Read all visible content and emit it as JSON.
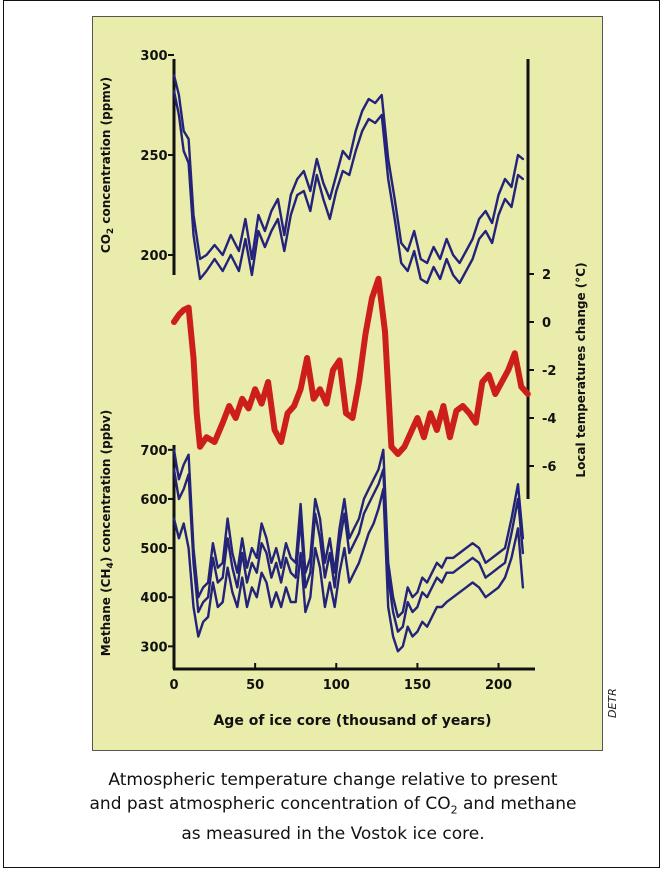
{
  "credit": "DETR",
  "caption": {
    "line1": "Atmospheric temperature change relative to present",
    "line2_pre": "and past atmospheric concentration of CO",
    "line2_sub": "2",
    "line2_post": " and methane",
    "line3": "as measured in the Vostok ice core."
  },
  "colors": {
    "panel": "#e9ecaa",
    "series_blue": "#23237a",
    "series_red": "#cc1f1a",
    "axis": "#111111"
  },
  "chart_data": {
    "type": "line",
    "title": "",
    "x_axis": {
      "label": "Age of ice core (thousand of years)",
      "ticks": [
        0,
        50,
        100,
        150,
        200
      ],
      "range": [
        0,
        220
      ]
    },
    "panels": [
      {
        "name": "co2",
        "ylabel_pre": "CO",
        "ylabel_sub": "2",
        "ylabel_post": " concentration (ppmv)",
        "ylim": [
          190,
          300
        ],
        "ticks": [
          200,
          250,
          300
        ],
        "axis_side": "left",
        "series": [
          {
            "x": [
              0,
              3,
              6,
              9,
              12,
              16,
              20,
              25,
              30,
              35,
              40,
              44,
              48,
              52,
              56,
              60,
              64,
              68,
              72,
              76,
              80,
              84,
              88,
              92,
              96,
              100,
              104,
              108,
              112,
              116,
              120,
              124,
              128,
              132,
              136,
              140,
              144,
              148,
              152,
              156,
              160,
              164,
              168,
              172,
              176,
              180,
              184,
              188,
              192,
              196,
              200,
              204,
              208,
              212,
              215
            ],
            "values": [
              290,
              280,
              262,
              258,
              220,
              198,
              200,
              205,
              200,
              210,
              202,
              218,
              198,
              220,
              212,
              222,
              228,
              210,
              230,
              238,
              242,
              232,
              248,
              236,
              228,
              240,
              252,
              248,
              262,
              272,
              278,
              276,
              280,
              248,
              228,
              206,
              202,
              212,
              198,
              196,
              204,
              198,
              208,
              200,
              196,
              202,
              208,
              218,
              222,
              216,
              230,
              238,
              234,
              250,
              248
            ]
          },
          {
            "x": [
              0,
              3,
              6,
              9,
              12,
              16,
              20,
              25,
              30,
              35,
              40,
              44,
              48,
              52,
              56,
              60,
              64,
              68,
              72,
              76,
              80,
              84,
              88,
              92,
              96,
              100,
              104,
              108,
              112,
              116,
              120,
              124,
              128,
              132,
              136,
              140,
              144,
              148,
              152,
              156,
              160,
              164,
              168,
              172,
              176,
              180,
              184,
              188,
              192,
              196,
              200,
              204,
              208,
              212,
              215
            ],
            "values": [
              282,
              270,
              252,
              246,
              210,
              188,
              192,
              198,
              192,
              200,
              192,
              208,
              190,
              212,
              204,
              212,
              218,
              202,
              220,
              230,
              232,
              222,
              240,
              228,
              218,
              232,
              242,
              240,
              252,
              262,
              268,
              266,
              270,
              238,
              218,
              196,
              192,
              202,
              188,
              186,
              194,
              188,
              198,
              190,
              186,
              192,
              198,
              208,
              212,
              206,
              220,
              228,
              224,
              240,
              238
            ]
          }
        ]
      },
      {
        "name": "temperature",
        "ylabel": "Local temperatures change (°C)",
        "ylim": [
          -7,
          3
        ],
        "ticks": [
          2,
          0,
          -2,
          -4,
          -6
        ],
        "axis_side": "right",
        "series": [
          {
            "x": [
              0,
              3,
              6,
              9,
              12,
              14,
              16,
              20,
              25,
              30,
              34,
              38,
              42,
              46,
              50,
              54,
              58,
              62,
              66,
              70,
              74,
              78,
              82,
              86,
              90,
              94,
              98,
              102,
              106,
              110,
              114,
              118,
              122,
              126,
              130,
              134,
              138,
              142,
              146,
              150,
              154,
              158,
              162,
              166,
              170,
              174,
              178,
              182,
              186,
              190,
              194,
              198,
              202,
              206,
              210,
              214,
              218
            ],
            "values": [
              0,
              0.3,
              0.5,
              0.6,
              -1.5,
              -3.8,
              -5.2,
              -4.8,
              -5,
              -4.2,
              -3.5,
              -4,
              -3.2,
              -3.6,
              -2.8,
              -3.4,
              -2.5,
              -4.5,
              -5,
              -3.8,
              -3.5,
              -2.8,
              -1.5,
              -3.2,
              -2.8,
              -3.4,
              -2,
              -1.6,
              -3.8,
              -4,
              -2.5,
              -0.5,
              1,
              1.8,
              -0.4,
              -5.2,
              -5.5,
              -5.2,
              -4.6,
              -4,
              -4.8,
              -3.8,
              -4.5,
              -3.5,
              -4.8,
              -3.7,
              -3.5,
              -3.8,
              -4.2,
              -2.5,
              -2.2,
              -3,
              -2.5,
              -2,
              -1.3,
              -2.7,
              -3
            ]
          }
        ]
      },
      {
        "name": "methane",
        "ylabel_pre": "Methane (CH",
        "ylabel_sub": "4",
        "ylabel_post": ") concentration (ppbv)",
        "ylim": [
          260,
          720
        ],
        "ticks": [
          300,
          400,
          500,
          600,
          700
        ],
        "axis_side": "left",
        "series": [
          {
            "x": [
              0,
              3,
              6,
              9,
              12,
              15,
              18,
              21,
              24,
              27,
              30,
              33,
              36,
              39,
              42,
              45,
              48,
              51,
              54,
              57,
              60,
              63,
              66,
              69,
              72,
              75,
              78,
              81,
              84,
              87,
              90,
              93,
              96,
              99,
              102,
              105,
              108,
              111,
              114,
              117,
              120,
              123,
              126,
              129,
              132,
              135,
              138,
              141,
              144,
              147,
              150,
              153,
              156,
              159,
              162,
              165,
              168,
              172,
              176,
              180,
              184,
              188,
              192,
              196,
              200,
              204,
              208,
              212,
              215
            ],
            "values": [
              700,
              640,
              670,
              690,
              500,
              400,
              420,
              430,
              510,
              460,
              470,
              560,
              490,
              450,
              520,
              460,
              500,
              480,
              550,
              520,
              470,
              500,
              460,
              510,
              480,
              470,
              590,
              450,
              480,
              600,
              560,
              470,
              520,
              450,
              540,
              600,
              520,
              540,
              560,
              600,
              620,
              640,
              660,
              700,
              470,
              400,
              360,
              370,
              420,
              400,
              410,
              440,
              430,
              450,
              470,
              460,
              480,
              480,
              490,
              500,
              510,
              500,
              470,
              480,
              490,
              500,
              560,
              630,
              520
            ]
          },
          {
            "x": [
              0,
              3,
              6,
              9,
              12,
              15,
              18,
              21,
              24,
              27,
              30,
              33,
              36,
              39,
              42,
              45,
              48,
              51,
              54,
              57,
              60,
              63,
              66,
              69,
              72,
              75,
              78,
              81,
              84,
              87,
              90,
              93,
              96,
              99,
              102,
              105,
              108,
              111,
              114,
              117,
              120,
              123,
              126,
              129,
              132,
              135,
              138,
              141,
              144,
              147,
              150,
              153,
              156,
              159,
              162,
              165,
              168,
              172,
              176,
              180,
              184,
              188,
              192,
              196,
              200,
              204,
              208,
              212,
              215
            ],
            "values": [
              660,
              600,
              620,
              650,
              470,
              370,
              390,
              400,
              480,
              430,
              440,
              520,
              460,
              420,
              490,
              430,
              470,
              450,
              510,
              490,
              440,
              470,
              430,
              480,
              450,
              440,
              560,
              420,
              450,
              570,
              520,
              440,
              490,
              420,
              510,
              570,
              490,
              510,
              530,
              570,
              590,
              610,
              630,
              660,
              440,
              370,
              330,
              340,
              390,
              370,
              380,
              410,
              400,
              420,
              440,
              430,
              450,
              450,
              460,
              470,
              480,
              470,
              440,
              450,
              460,
              470,
              530,
              600,
              490
            ]
          },
          {
            "x": [
              0,
              3,
              6,
              9,
              12,
              15,
              18,
              21,
              24,
              27,
              30,
              33,
              36,
              39,
              42,
              45,
              48,
              51,
              54,
              57,
              60,
              63,
              66,
              69,
              72,
              75,
              78,
              81,
              84,
              87,
              90,
              93,
              96,
              99,
              102,
              105,
              108,
              111,
              114,
              117,
              120,
              123,
              126,
              129,
              132,
              135,
              138,
              141,
              144,
              147,
              150,
              153,
              156,
              159,
              162,
              165,
              168,
              172,
              176,
              180,
              184,
              188,
              192,
              196,
              200,
              204,
              208,
              212,
              215
            ],
            "values": [
              560,
              520,
              550,
              500,
              380,
              320,
              350,
              360,
              430,
              380,
              390,
              460,
              410,
              380,
              440,
              380,
              420,
              400,
              450,
              430,
              380,
              410,
              380,
              420,
              390,
              390,
              490,
              370,
              400,
              500,
              460,
              380,
              430,
              380,
              450,
              500,
              430,
              450,
              470,
              500,
              530,
              550,
              580,
              620,
              380,
              320,
              290,
              300,
              340,
              320,
              330,
              350,
              340,
              360,
              380,
              380,
              390,
              400,
              410,
              420,
              430,
              420,
              400,
              410,
              420,
              440,
              480,
              540,
              420
            ]
          }
        ]
      }
    ]
  }
}
